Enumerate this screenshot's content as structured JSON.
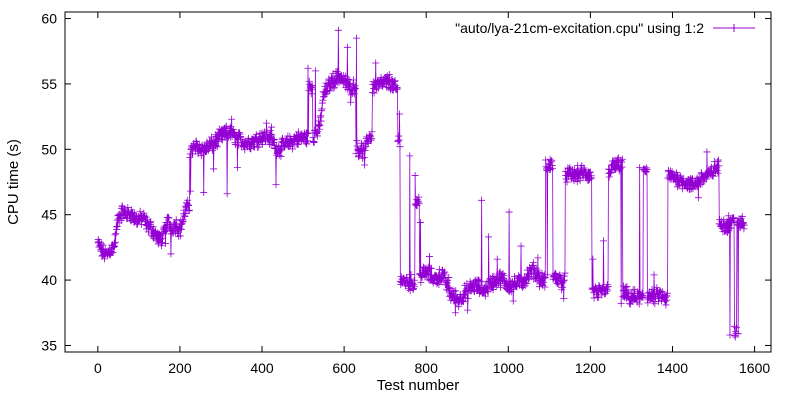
{
  "chart_data": {
    "type": "line",
    "xlabel": "Test number",
    "ylabel": "CPU time (s)",
    "xlim": [
      -80,
      1640
    ],
    "ylim": [
      34.5,
      60.5
    ],
    "xticks": [
      0,
      200,
      400,
      600,
      800,
      1000,
      1200,
      1400,
      1600
    ],
    "yticks": [
      35,
      40,
      45,
      50,
      55,
      60
    ],
    "legend_position": "top-right",
    "grid": false,
    "series": [
      {
        "name": "\"auto/lya-21cm-excitation.cpu\" using 1:2",
        "color": "#9400d3",
        "marker": "plus",
        "anchors": [
          [
            0,
            42.8
          ],
          [
            10,
            42.2
          ],
          [
            20,
            41.9
          ],
          [
            30,
            42.3
          ],
          [
            40,
            42.6
          ],
          [
            50,
            44.8
          ],
          [
            60,
            45.2
          ],
          [
            70,
            45.0
          ],
          [
            80,
            45.1
          ],
          [
            90,
            44.7
          ],
          [
            100,
            44.6
          ],
          [
            110,
            44.8
          ],
          [
            120,
            44.2
          ],
          [
            130,
            44.0
          ],
          [
            140,
            43.5
          ],
          [
            150,
            43.0
          ],
          [
            160,
            43.4
          ],
          [
            170,
            44.5
          ],
          [
            180,
            44.0
          ],
          [
            190,
            44.3
          ],
          [
            200,
            43.8
          ],
          [
            215,
            45.5
          ],
          [
            225,
            49.8
          ],
          [
            240,
            50.2
          ],
          [
            260,
            50.0
          ],
          [
            280,
            50.4
          ],
          [
            300,
            51.0
          ],
          [
            320,
            51.3
          ],
          [
            340,
            50.8
          ],
          [
            360,
            50.5
          ],
          [
            380,
            50.6
          ],
          [
            400,
            51.0
          ],
          [
            420,
            50.9
          ],
          [
            440,
            50.0
          ],
          [
            460,
            50.4
          ],
          [
            480,
            50.7
          ],
          [
            500,
            50.9
          ],
          [
            515,
            54.8
          ],
          [
            525,
            51.0
          ],
          [
            540,
            51.6
          ],
          [
            550,
            54.2
          ],
          [
            570,
            55.2
          ],
          [
            590,
            55.6
          ],
          [
            610,
            54.8
          ],
          [
            630,
            50.1
          ],
          [
            650,
            49.8
          ],
          [
            660,
            51.0
          ],
          [
            670,
            54.8
          ],
          [
            690,
            55.0
          ],
          [
            710,
            55.2
          ],
          [
            725,
            54.6
          ],
          [
            732,
            50.6
          ],
          [
            738,
            40.0
          ],
          [
            760,
            39.8
          ],
          [
            775,
            46.0
          ],
          [
            785,
            40.3
          ],
          [
            800,
            40.6
          ],
          [
            820,
            40.1
          ],
          [
            840,
            40.4
          ],
          [
            860,
            38.9
          ],
          [
            880,
            38.5
          ],
          [
            900,
            39.2
          ],
          [
            920,
            39.6
          ],
          [
            940,
            39.2
          ],
          [
            960,
            39.8
          ],
          [
            980,
            40.1
          ],
          [
            1000,
            39.6
          ],
          [
            1020,
            39.7
          ],
          [
            1040,
            40.0
          ],
          [
            1060,
            40.8
          ],
          [
            1080,
            40.0
          ],
          [
            1092,
            48.6
          ],
          [
            1105,
            48.8
          ],
          [
            1110,
            40.3
          ],
          [
            1130,
            39.9
          ],
          [
            1140,
            48.1
          ],
          [
            1160,
            48.0
          ],
          [
            1180,
            48.2
          ],
          [
            1195,
            48.0
          ],
          [
            1205,
            39.1
          ],
          [
            1220,
            39.0
          ],
          [
            1235,
            39.2
          ],
          [
            1245,
            48.4
          ],
          [
            1265,
            48.8
          ],
          [
            1280,
            39.0
          ],
          [
            1300,
            38.7
          ],
          [
            1320,
            38.6
          ],
          [
            1330,
            48.5
          ],
          [
            1340,
            38.8
          ],
          [
            1355,
            38.7
          ],
          [
            1370,
            38.9
          ],
          [
            1380,
            38.5
          ],
          [
            1390,
            48.0
          ],
          [
            1410,
            47.8
          ],
          [
            1430,
            47.5
          ],
          [
            1450,
            47.2
          ],
          [
            1470,
            47.8
          ],
          [
            1490,
            48.0
          ],
          [
            1505,
            48.6
          ],
          [
            1515,
            44.4
          ],
          [
            1530,
            44.2
          ],
          [
            1545,
            44.5
          ],
          [
            1552,
            36.2
          ],
          [
            1558,
            44.0
          ],
          [
            1570,
            44.5
          ],
          [
            1575,
            44.2
          ]
        ],
        "spikes": [
          [
            60,
            45.6
          ],
          [
            165,
            42.8
          ],
          [
            178,
            42.0
          ],
          [
            226,
            46.8
          ],
          [
            258,
            46.7
          ],
          [
            282,
            48.5
          ],
          [
            315,
            46.6
          ],
          [
            326,
            52.3
          ],
          [
            340,
            48.6
          ],
          [
            411,
            52.0
          ],
          [
            423,
            51.7
          ],
          [
            434,
            47.3
          ],
          [
            484,
            51.1
          ],
          [
            512,
            56.2
          ],
          [
            530,
            56.0
          ],
          [
            586,
            59.1
          ],
          [
            608,
            57.8
          ],
          [
            616,
            53.6
          ],
          [
            630,
            58.5
          ],
          [
            650,
            48.8
          ],
          [
            677,
            56.6
          ],
          [
            735,
            52.7
          ],
          [
            760,
            49.5
          ],
          [
            773,
            48.0
          ],
          [
            786,
            44.4
          ],
          [
            808,
            41.8
          ],
          [
            855,
            40.2
          ],
          [
            871,
            37.5
          ],
          [
            901,
            37.7
          ],
          [
            935,
            46.1
          ],
          [
            952,
            43.3
          ],
          [
            973,
            41.6
          ],
          [
            987,
            40.5
          ],
          [
            1002,
            45.2
          ],
          [
            1012,
            38.4
          ],
          [
            1031,
            42.6
          ],
          [
            1072,
            41.7
          ],
          [
            1095,
            40.4
          ],
          [
            1135,
            38.6
          ],
          [
            1206,
            41.6
          ],
          [
            1220,
            38.7
          ],
          [
            1232,
            43.0
          ],
          [
            1275,
            38.2
          ],
          [
            1295,
            38.2
          ],
          [
            1320,
            48.6
          ],
          [
            1355,
            40.4
          ],
          [
            1385,
            38.8
          ],
          [
            1440,
            47.3
          ],
          [
            1463,
            46.3
          ],
          [
            1484,
            49.8
          ],
          [
            1540,
            35.8
          ],
          [
            1560,
            35.9
          ],
          [
            1578,
            45.3
          ]
        ]
      }
    ]
  }
}
